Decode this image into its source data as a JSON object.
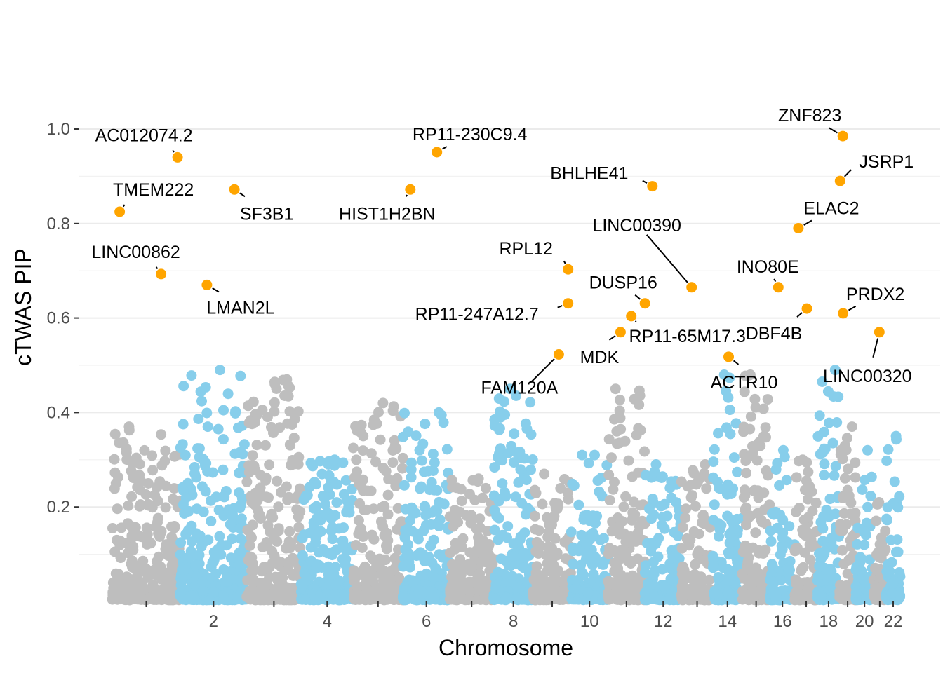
{
  "chart_data": {
    "type": "scatter",
    "title": "",
    "xlabel": "Chromosome",
    "ylabel": "cTWAS PIP",
    "ylim": [
      0,
      1.0
    ],
    "y_ticks": [
      0.2,
      0.4,
      0.6,
      0.8,
      1.0
    ],
    "y_tick_labels": [
      "0.2",
      "0.4",
      "0.6",
      "0.8",
      "1.0"
    ],
    "grid": true,
    "legend": "none",
    "chromosome_colors": [
      "#bebebe",
      "#87ceeb"
    ],
    "highlight_color": "#ffa500",
    "chromosomes": [
      {
        "chr": 1,
        "label": "",
        "start": 0,
        "length": 248
      },
      {
        "chr": 2,
        "label": "2",
        "start": 248,
        "length": 242
      },
      {
        "chr": 3,
        "label": "",
        "start": 490,
        "length": 198
      },
      {
        "chr": 4,
        "label": "4",
        "start": 688,
        "length": 190
      },
      {
        "chr": 5,
        "label": "",
        "start": 878,
        "length": 181
      },
      {
        "chr": 6,
        "label": "6",
        "start": 1059,
        "length": 171
      },
      {
        "chr": 7,
        "label": "",
        "start": 1230,
        "length": 159
      },
      {
        "chr": 8,
        "label": "8",
        "start": 1389,
        "length": 145
      },
      {
        "chr": 9,
        "label": "",
        "start": 1534,
        "length": 138
      },
      {
        "chr": 10,
        "label": "10",
        "start": 1672,
        "length": 134
      },
      {
        "chr": 11,
        "label": "",
        "start": 1806,
        "length": 135
      },
      {
        "chr": 12,
        "label": "12",
        "start": 1941,
        "length": 133
      },
      {
        "chr": 13,
        "label": "",
        "start": 2074,
        "length": 114
      },
      {
        "chr": 14,
        "label": "14",
        "start": 2188,
        "length": 107
      },
      {
        "chr": 15,
        "label": "",
        "start": 2295,
        "length": 102
      },
      {
        "chr": 16,
        "label": "16",
        "start": 2397,
        "length": 90
      },
      {
        "chr": 17,
        "label": "",
        "start": 2487,
        "length": 83
      },
      {
        "chr": 18,
        "label": "18",
        "start": 2570,
        "length": 80
      },
      {
        "chr": 19,
        "label": "",
        "start": 2650,
        "length": 59
      },
      {
        "chr": 20,
        "label": "20",
        "start": 2709,
        "length": 64
      },
      {
        "chr": 21,
        "label": "",
        "start": 2773,
        "length": 47
      },
      {
        "chr": 22,
        "label": "22",
        "start": 2820,
        "length": 51
      }
    ],
    "highlighted_genes": [
      {
        "gene": "AC012074.2",
        "chr": 1,
        "pos": 238,
        "pip": 0.94
      },
      {
        "gene": "TMEM222",
        "chr": 1,
        "pos": 27,
        "pip": 0.825
      },
      {
        "gene": "LINC00862",
        "chr": 1,
        "pos": 178,
        "pip": 0.693
      },
      {
        "gene": "LMAN2L",
        "chr": 2,
        "pos": 97,
        "pip": 0.67
      },
      {
        "gene": "SF3B1",
        "chr": 2,
        "pos": 197,
        "pip": 0.872
      },
      {
        "gene": "RP11-230C9.4",
        "chr": 6,
        "pos": 124,
        "pip": 0.951
      },
      {
        "gene": "HIST1H2BN",
        "chr": 6,
        "pos": 27,
        "pip": 0.872
      },
      {
        "gene": "RPL12",
        "chr": 9,
        "pos": 127,
        "pip": 0.703
      },
      {
        "gene": "RP11-247A12.7",
        "chr": 9,
        "pos": 127,
        "pip": 0.631
      },
      {
        "gene": "FAM120A",
        "chr": 9,
        "pos": 93,
        "pip": 0.523
      },
      {
        "gene": "BHLHE41",
        "chr": 12,
        "pos": 27,
        "pip": 0.879
      },
      {
        "gene": "LINC00390",
        "chr": 13,
        "pos": 37,
        "pip": 0.665
      },
      {
        "gene": "DUSP16",
        "chr": 12,
        "pos": 0,
        "pip": 0.631
      },
      {
        "gene": "RP11-65M17.3",
        "chr": 11,
        "pos": 85,
        "pip": 0.604
      },
      {
        "gene": "MDK",
        "chr": 11,
        "pos": 46,
        "pip": 0.57
      },
      {
        "gene": "INO80E",
        "chr": 16,
        "pos": 30,
        "pip": 0.665
      },
      {
        "gene": "ACTR10",
        "chr": 14,
        "pos": 58,
        "pip": 0.518
      },
      {
        "gene": "ZNF823",
        "chr": 19,
        "pos": 12,
        "pip": 0.985
      },
      {
        "gene": "JSRP1",
        "chr": 19,
        "pos": 2,
        "pip": 0.89
      },
      {
        "gene": "ELAC2",
        "chr": 17,
        "pos": 13,
        "pip": 0.79
      },
      {
        "gene": "DBF4B",
        "chr": 17,
        "pos": 44,
        "pip": 0.62
      },
      {
        "gene": "PRDX2",
        "chr": 19,
        "pos": 13,
        "pip": 0.61
      },
      {
        "gene": "LINC00320",
        "chr": 21,
        "pos": 22,
        "pip": 0.57
      }
    ],
    "max_pip_per_chromosome": [
      {
        "chr": 1,
        "pip": 0.37
      },
      {
        "chr": 2,
        "pip": 0.49
      },
      {
        "chr": 3,
        "pip": 0.47
      },
      {
        "chr": 4,
        "pip": 0.3
      },
      {
        "chr": 5,
        "pip": 0.42
      },
      {
        "chr": 6,
        "pip": 0.4
      },
      {
        "chr": 7,
        "pip": 0.26
      },
      {
        "chr": 8,
        "pip": 0.45
      },
      {
        "chr": 9,
        "pip": 0.27
      },
      {
        "chr": 10,
        "pip": 0.31
      },
      {
        "chr": 11,
        "pip": 0.45
      },
      {
        "chr": 12,
        "pip": 0.29
      },
      {
        "chr": 13,
        "pip": 0.29
      },
      {
        "chr": 14,
        "pip": 0.48
      },
      {
        "chr": 15,
        "pip": 0.48
      },
      {
        "chr": 16,
        "pip": 0.32
      },
      {
        "chr": 17,
        "pip": 0.3
      },
      {
        "chr": 18,
        "pip": 0.49
      },
      {
        "chr": 19,
        "pip": 0.37
      },
      {
        "chr": 20,
        "pip": 0.32
      },
      {
        "chr": 21,
        "pip": 0.21
      },
      {
        "chr": 22,
        "pip": 0.35
      }
    ]
  }
}
